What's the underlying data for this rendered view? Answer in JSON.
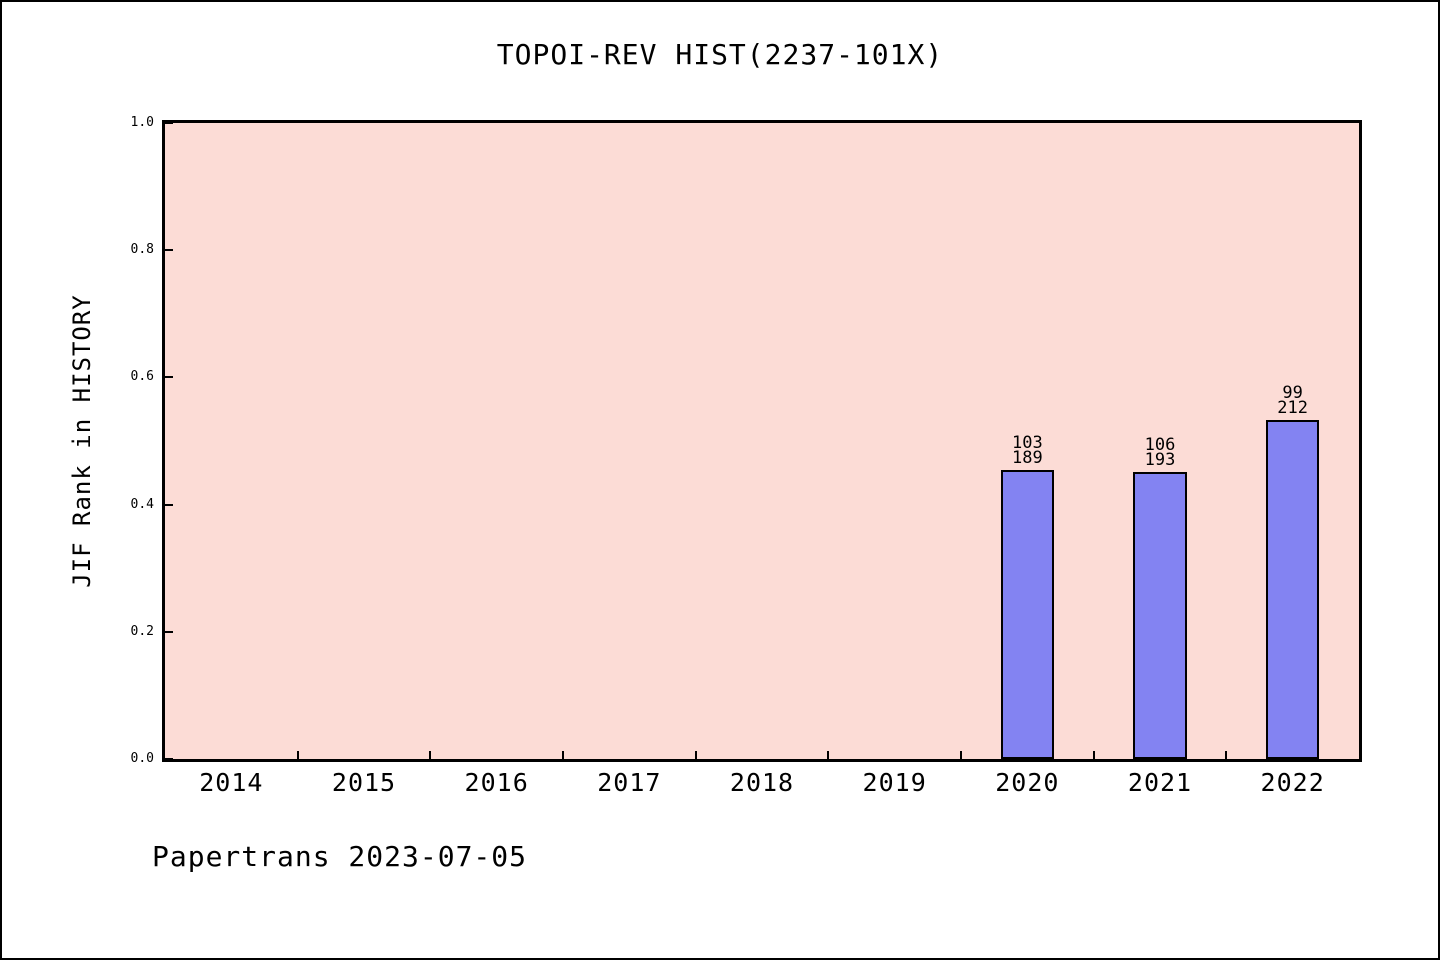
{
  "figure": {
    "footer": "Papertrans 2023-07-05"
  },
  "chart_data": {
    "type": "bar",
    "title": "TOPOI-REV HIST(2237-101X)",
    "xlabel": "",
    "ylabel": "JIF Rank in HISTORY",
    "ylim": [
      0.0,
      1.0
    ],
    "grid": false,
    "legend": null,
    "yticks": [
      {
        "value": 0.0,
        "label": "0.0"
      },
      {
        "value": 0.2,
        "label": "0.2"
      },
      {
        "value": 0.4,
        "label": "0.4"
      },
      {
        "value": 0.6,
        "label": "0.6"
      },
      {
        "value": 0.8,
        "label": "0.8"
      },
      {
        "value": 1.0,
        "label": "1.0"
      }
    ],
    "categories": [
      "2014",
      "2015",
      "2016",
      "2017",
      "2018",
      "2019",
      "2020",
      "2021",
      "2022"
    ],
    "bars": [
      {
        "category": "2020",
        "rank": 103,
        "total": 189,
        "value": 0.455,
        "label_lines": [
          "103",
          "189"
        ]
      },
      {
        "category": "2021",
        "rank": 106,
        "total": 193,
        "value": 0.451,
        "label_lines": [
          "106",
          "193"
        ]
      },
      {
        "category": "2022",
        "rank": 99,
        "total": 212,
        "value": 0.533,
        "label_lines": [
          "99",
          "212"
        ]
      }
    ],
    "colors": {
      "plot_bg": "#fcdcd6",
      "bar_fill": "#8383f2",
      "bar_edge": "#000000",
      "frame": "#000000",
      "text": "#000000"
    }
  }
}
